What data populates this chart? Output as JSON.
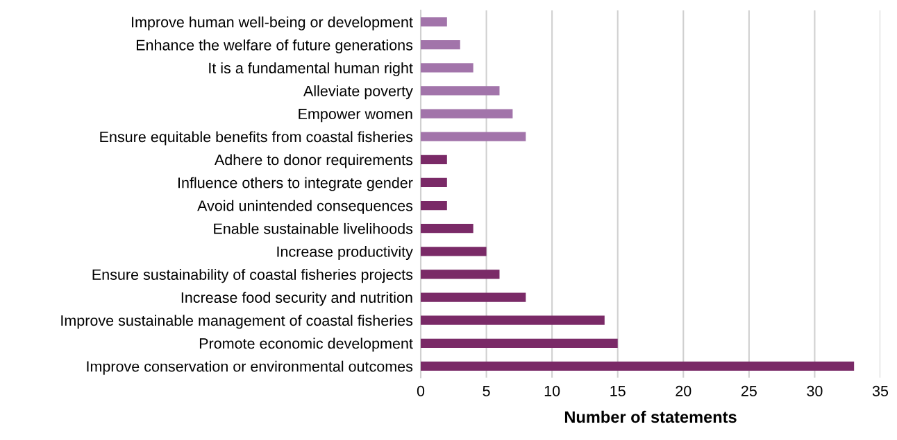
{
  "chart_data": {
    "type": "bar",
    "orientation": "horizontal",
    "xlabel": "Number of statements",
    "categories": [
      "Improve human well-being or development",
      "Enhance the welfare of future generations",
      "It is a fundamental human right",
      "Alleviate poverty",
      "Empower women",
      "Ensure equitable benefits from coastal fisheries",
      "Adhere to donor requirements",
      "Influence others to integrate gender",
      "Avoid unintended consequences",
      "Enable sustainable livelihoods",
      "Increase productivity",
      "Ensure sustainability of coastal fisheries projects",
      "Increase food security and nutrition",
      "Improve sustainable management of coastal fisheries",
      "Promote economic development",
      "Improve conservation or environmental outcomes"
    ],
    "values": [
      2,
      3,
      4,
      6,
      7,
      8,
      2,
      2,
      2,
      4,
      5,
      6,
      8,
      14,
      15,
      33
    ],
    "colors": [
      "#a274aa",
      "#a274aa",
      "#a274aa",
      "#a274aa",
      "#a274aa",
      "#a274aa",
      "#7a2a67",
      "#7a2a67",
      "#7a2a67",
      "#7a2a67",
      "#7a2a67",
      "#7a2a67",
      "#7a2a67",
      "#7a2a67",
      "#7a2a67",
      "#7a2a67"
    ],
    "xlim": [
      0,
      35
    ],
    "xticks": [
      0,
      5,
      10,
      15,
      20,
      25,
      30,
      35
    ],
    "grid": "x",
    "legend": false
  }
}
